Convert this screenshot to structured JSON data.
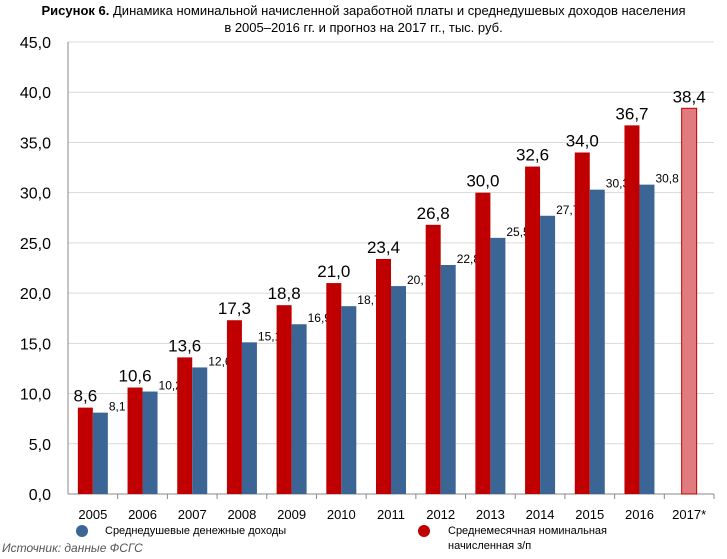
{
  "header": {
    "label": "Рисунок 6.",
    "line1": "Динамика номинальной начисленной заработной платы и среднедушевых доходов населения",
    "line2": "в 2005–2016 гг. и прогноз на 2017 гг., тыс. руб."
  },
  "source": "Источник: данные ФСГС",
  "colors": {
    "income": "#3A6594",
    "salary": "#C00000",
    "forecast": "#E07C80"
  },
  "chart_data": {
    "type": "bar",
    "categories": [
      "2005",
      "2006",
      "2007",
      "2008",
      "2009",
      "2010",
      "2011",
      "2012",
      "2013",
      "2014",
      "2015",
      "2016",
      "2017*"
    ],
    "series": [
      {
        "name": "Среднемесячная номинальная начисленная з/п",
        "values": [
          8.6,
          10.6,
          13.6,
          17.3,
          18.8,
          21.0,
          23.4,
          26.8,
          30.0,
          32.6,
          34.0,
          36.7,
          38.4
        ],
        "labels": [
          "8,6",
          "10,6",
          "13,6",
          "17,3",
          "18,8",
          "21,0",
          "23,4",
          "26,8",
          "30,0",
          "32,6",
          "34,0",
          "36,7",
          "38,4"
        ]
      },
      {
        "name": "Среднедушевые денежные доходы",
        "values": [
          8.1,
          10.2,
          12.6,
          15.1,
          16.9,
          18.7,
          20.7,
          22.8,
          25.5,
          27.7,
          30.3,
          30.8,
          null
        ],
        "labels": [
          "8,1",
          "10,2",
          "12,6",
          "15,1",
          "16,9",
          "18,7",
          "20,7",
          "22,8",
          "25,5",
          "27,7",
          "30,3",
          "30,8",
          ""
        ]
      }
    ],
    "ylim": [
      0,
      45
    ],
    "yticks": [
      "0,0",
      "5,0",
      "10,0",
      "15,0",
      "20,0",
      "25,0",
      "30,0",
      "35,0",
      "40,0",
      "45,0"
    ],
    "grid": true,
    "legend": [
      {
        "text": "Среднедушевые денежные доходы"
      },
      {
        "line1": "Среднемесячная номинальная",
        "line2": "начисленная з/п"
      }
    ]
  }
}
